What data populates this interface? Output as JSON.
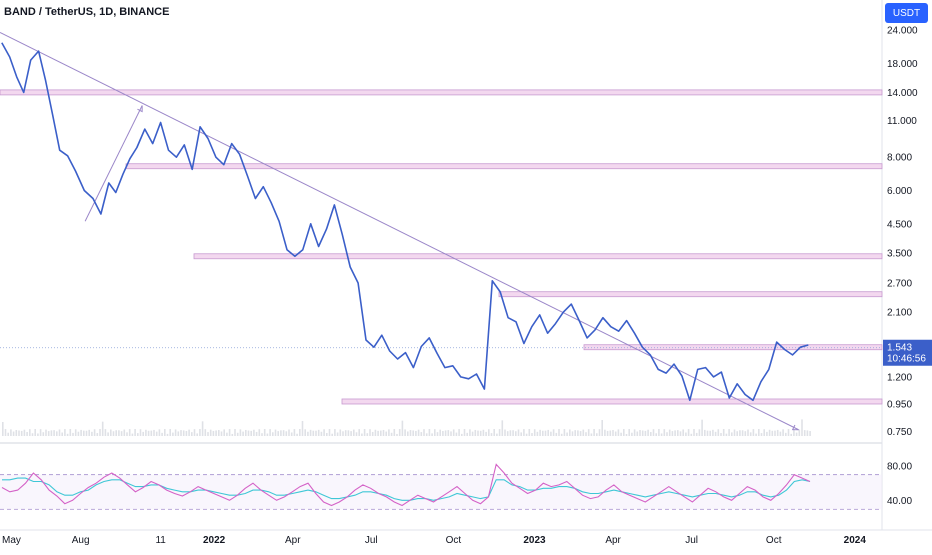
{
  "header": {
    "title": "BAND / TetherUS, 1D, BINANCE",
    "unit_button": "USDT"
  },
  "price_badge": {
    "price": "1.543",
    "countdown": "10:46:56"
  },
  "colors": {
    "price_line": "#3b5fc9",
    "trendline": "#9b87c9",
    "level_zone_fill": "#f3d8ef",
    "level_zone_stroke": "#c79ad0",
    "rsi_line": "#d462c7",
    "rsi_band": "#3fc7d6",
    "accent": "#2962ff",
    "axis_text": "#131722",
    "grid": "#eef0f3"
  },
  "chart_data": [
    {
      "type": "line",
      "title": "BAND / TetherUS, 1D, BINANCE",
      "xlabel": "",
      "ylabel": "",
      "y_scale": "log",
      "ylim": [
        0.72,
        24
      ],
      "x_range": [
        "2021-05-01",
        "2024-01-31"
      ],
      "y_ticks": [
        "0.750",
        "0.950",
        "1.200",
        "1.543",
        "2.100",
        "2.700",
        "3.500",
        "4.500",
        "6.000",
        "8.000",
        "11.000",
        "14.000",
        "18.000",
        "24.000"
      ],
      "x_ticks": [
        "May",
        "Aug",
        "11",
        "2022",
        "Apr",
        "Jul",
        "Oct",
        "2023",
        "Apr",
        "Jul",
        "Oct",
        "2024"
      ],
      "grid": false,
      "series": [
        {
          "x": [
            "2021-05-03",
            "2021-05-12",
            "2021-05-20",
            "2021-05-28",
            "2021-06-05",
            "2021-06-14",
            "2021-06-22",
            "2021-06-30",
            "2021-07-08",
            "2021-07-17",
            "2021-07-26",
            "2021-08-05",
            "2021-08-15",
            "2021-08-24",
            "2021-09-02",
            "2021-09-10",
            "2021-09-18",
            "2021-09-26",
            "2021-10-04",
            "2021-10-13",
            "2021-10-22",
            "2021-10-31",
            "2021-11-09",
            "2021-11-18",
            "2021-11-27",
            "2021-12-06",
            "2021-12-15",
            "2021-12-24",
            "2022-01-02",
            "2022-01-11",
            "2022-01-20",
            "2022-01-29",
            "2022-02-07",
            "2022-02-16",
            "2022-02-25",
            "2022-03-06",
            "2022-03-15",
            "2022-03-24",
            "2022-04-02",
            "2022-04-11",
            "2022-04-20",
            "2022-04-29",
            "2022-05-08",
            "2022-05-17",
            "2022-05-26",
            "2022-06-04",
            "2022-06-13",
            "2022-06-22",
            "2022-07-01",
            "2022-07-10",
            "2022-07-19",
            "2022-07-28",
            "2022-08-06",
            "2022-08-15",
            "2022-08-24",
            "2022-09-02",
            "2022-09-11",
            "2022-09-20",
            "2022-09-29",
            "2022-10-08",
            "2022-10-17",
            "2022-10-26",
            "2022-11-04",
            "2022-11-13",
            "2022-11-22",
            "2022-12-01",
            "2022-12-10",
            "2022-12-19",
            "2022-12-28",
            "2023-01-06",
            "2023-01-15",
            "2023-01-24",
            "2023-02-02",
            "2023-02-11",
            "2023-02-20",
            "2023-03-01",
            "2023-03-10",
            "2023-03-19",
            "2023-03-28",
            "2023-04-06",
            "2023-04-15",
            "2023-04-24",
            "2023-05-03",
            "2023-05-12",
            "2023-05-21",
            "2023-05-30",
            "2023-06-08",
            "2023-06-17",
            "2023-06-26",
            "2023-07-05",
            "2023-07-14",
            "2023-07-23",
            "2023-08-01",
            "2023-08-10",
            "2023-08-19",
            "2023-08-28",
            "2023-09-06",
            "2023-09-15",
            "2023-09-24",
            "2023-10-03",
            "2023-10-12",
            "2023-10-21",
            "2023-10-30",
            "2023-11-08"
          ],
          "y": [
            21.5,
            19.0,
            16.0,
            14.0,
            18.5,
            20.0,
            15.5,
            11.5,
            8.5,
            8.1,
            7.1,
            6.0,
            5.6,
            4.9,
            6.4,
            5.9,
            6.9,
            7.9,
            8.7,
            10.2,
            9.0,
            10.8,
            8.5,
            8.0,
            8.9,
            7.2,
            10.4,
            9.4,
            8.0,
            7.5,
            9.0,
            8.2,
            6.8,
            5.6,
            6.2,
            5.4,
            4.6,
            3.6,
            3.4,
            3.6,
            4.5,
            3.7,
            4.3,
            5.3,
            4.1,
            3.1,
            2.7,
            1.65,
            1.55,
            1.72,
            1.5,
            1.4,
            1.48,
            1.3,
            1.56,
            1.68,
            1.47,
            1.3,
            1.32,
            1.2,
            1.18,
            1.23,
            1.08,
            2.75,
            2.5,
            2.0,
            1.93,
            1.6,
            1.85,
            2.05,
            1.75,
            1.9,
            2.1,
            2.25,
            1.95,
            1.68,
            1.8,
            2.0,
            1.85,
            1.78,
            1.95,
            1.75,
            1.55,
            1.45,
            1.28,
            1.24,
            1.34,
            1.21,
            0.98,
            1.28,
            1.3,
            1.2,
            1.25,
            1.0,
            1.13,
            1.03,
            0.98,
            1.15,
            1.28,
            1.62,
            1.52,
            1.45,
            1.55,
            1.58
          ],
          "color": "#3b5fc9"
        }
      ],
      "horizontal_levels": [
        14.0,
        7.4,
        3.4,
        2.45,
        1.55,
        0.97
      ],
      "trendlines": [
        {
          "from": [
            "2021-05-01",
            23.5
          ],
          "to": [
            "2023-10-28",
            0.76
          ]
        },
        {
          "from": [
            "2021-08-06",
            4.6
          ],
          "to": [
            "2021-10-10",
            12.5
          ]
        }
      ]
    },
    {
      "type": "line",
      "title": "",
      "ylim": [
        17,
        100
      ],
      "y_ticks": [
        "40.00",
        "80.00"
      ],
      "dashed_levels": [
        29.6,
        70.0
      ],
      "series": [
        {
          "values": [
            55,
            50,
            52,
            60,
            72,
            64,
            52,
            45,
            36,
            40,
            48,
            55,
            60,
            67,
            72,
            66,
            58,
            50,
            55,
            62,
            58,
            52,
            48,
            45,
            50,
            56,
            52,
            48,
            44,
            40,
            46,
            54,
            60,
            52,
            46,
            40,
            44,
            50,
            56,
            60,
            48,
            38,
            34,
            38,
            44,
            52,
            58,
            54,
            48,
            44,
            38,
            34,
            40,
            46,
            42,
            38,
            44,
            50,
            56,
            48,
            40,
            36,
            44,
            82,
            72,
            60,
            54,
            48,
            52,
            60,
            56,
            58,
            62,
            54,
            46,
            42,
            44,
            52,
            58,
            50,
            46,
            42,
            38,
            44,
            50,
            56,
            50,
            44,
            38,
            46,
            54,
            50,
            44,
            40,
            48,
            56,
            52,
            44,
            40,
            48,
            58,
            70,
            66,
            62
          ],
          "color": "#d462c7"
        },
        {
          "values": [
            64,
            64,
            66,
            66,
            62,
            62,
            58,
            50,
            46,
            46,
            50,
            52,
            58,
            62,
            64,
            64,
            60,
            56,
            56,
            58,
            58,
            54,
            52,
            50,
            50,
            52,
            52,
            50,
            48,
            46,
            46,
            48,
            52,
            52,
            50,
            46,
            46,
            48,
            50,
            52,
            50,
            46,
            42,
            42,
            44,
            46,
            50,
            50,
            48,
            46,
            42,
            40,
            40,
            42,
            42,
            40,
            42,
            44,
            48,
            46,
            44,
            42,
            44,
            64,
            64,
            58,
            56,
            52,
            52,
            54,
            54,
            56,
            56,
            54,
            50,
            48,
            48,
            50,
            52,
            50,
            48,
            46,
            44,
            46,
            48,
            50,
            48,
            46,
            44,
            46,
            48,
            48,
            46,
            44,
            46,
            50,
            50,
            46,
            44,
            46,
            52,
            62,
            64,
            62
          ],
          "color": "#3fc7d6"
        }
      ]
    }
  ]
}
